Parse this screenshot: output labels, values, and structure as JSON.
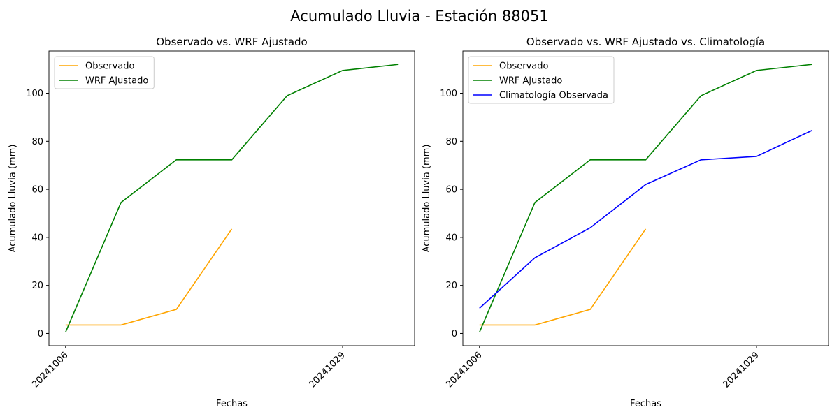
{
  "title": "Acumulado Lluvia - Estación 88051",
  "chart_data": [
    {
      "type": "line",
      "title": "Observado vs. WRF Ajustado",
      "xlabel": "Fechas",
      "ylabel": "Acumulado Lluvia (mm)",
      "categories": [
        "20241006",
        null,
        null,
        null,
        null,
        "20241029",
        null
      ],
      "series": [
        {
          "name": "Observado",
          "color": "orange",
          "values": [
            3.5,
            3.5,
            10,
            43.5,
            null,
            null,
            null
          ]
        },
        {
          "name": "WRF Ajustado",
          "color": "green",
          "values": [
            0.5,
            54.5,
            72.3,
            72.3,
            99,
            109.5,
            112
          ]
        }
      ],
      "ylim": [
        -5.1,
        117.6
      ],
      "yticks": [
        0,
        20,
        40,
        60,
        80,
        100
      ],
      "legend": "upper left"
    },
    {
      "type": "line",
      "title": "Observado vs. WRF Ajustado vs. Climatología",
      "xlabel": "Fechas",
      "ylabel": "Acumulado Lluvia (mm)",
      "categories": [
        "20241006",
        null,
        null,
        null,
        null,
        "20241029",
        null
      ],
      "series": [
        {
          "name": "Observado",
          "color": "orange",
          "values": [
            3.5,
            3.5,
            10,
            43.5,
            null,
            null,
            null
          ]
        },
        {
          "name": "WRF Ajustado",
          "color": "green",
          "values": [
            0.5,
            54.5,
            72.3,
            72.3,
            99,
            109.5,
            112
          ]
        },
        {
          "name": "Climatología Observada",
          "color": "blue",
          "values": [
            10.5,
            31.5,
            44,
            62,
            72.3,
            73.7,
            84.5
          ]
        }
      ],
      "ylim": [
        -5.1,
        117.6
      ],
      "yticks": [
        0,
        20,
        40,
        60,
        80,
        100
      ],
      "legend": "upper left"
    }
  ]
}
